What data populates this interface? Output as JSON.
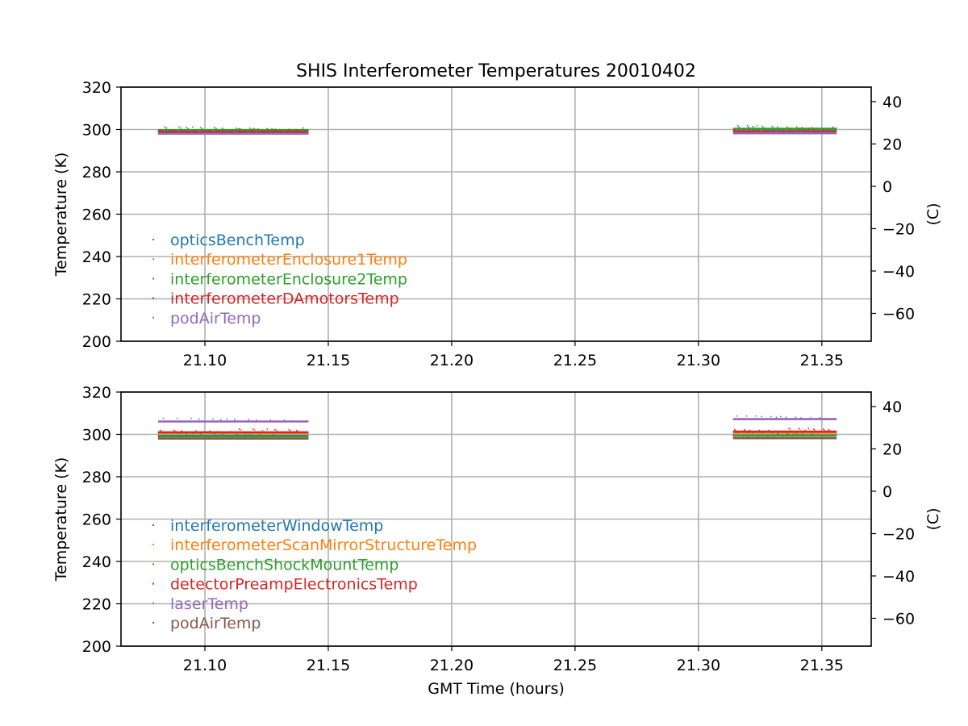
{
  "chart_data": [
    {
      "type": "line",
      "title": "SHIS Interferometer Temperatures 20010402",
      "xlabel": "",
      "ylabel": "Temperature (K)",
      "y2label": "(C)",
      "xlim": [
        21.066,
        21.37
      ],
      "ylim": [
        200,
        320
      ],
      "y2lim": [
        -73.15,
        46.85
      ],
      "xticks": [
        "21.10",
        "21.15",
        "21.20",
        "21.25",
        "21.30",
        "21.35"
      ],
      "yticks": [
        "200",
        "220",
        "240",
        "260",
        "280",
        "300",
        "320"
      ],
      "y2ticks": [
        "40",
        "20",
        "0",
        "−20",
        "−40",
        "−60"
      ],
      "grid": true,
      "legend_position": "lower-left",
      "marker": "point",
      "series": [
        {
          "name": "opticsBenchTemp",
          "color": "#1f77b4",
          "segments": [
            {
              "x": [
                21.081,
                21.142
              ],
              "y": 299.2
            },
            {
              "x": [
                21.314,
                21.356
              ],
              "y": 299.6
            }
          ]
        },
        {
          "name": "interferometerEnclosure1Temp",
          "color": "#ff7f0e",
          "segments": [
            {
              "x": [
                21.081,
                21.142
              ],
              "y": 298.7
            },
            {
              "x": [
                21.314,
                21.356
              ],
              "y": 299.1
            }
          ]
        },
        {
          "name": "interferometerEnclosure2Temp",
          "color": "#2ca02c",
          "segments": [
            {
              "x": [
                21.081,
                21.142
              ],
              "y": 299.7
            },
            {
              "x": [
                21.314,
                21.356
              ],
              "y": 300.3
            }
          ]
        },
        {
          "name": "interferometerDAmotorsTemp",
          "color": "#d62728",
          "segments": [
            {
              "x": [
                21.081,
                21.142
              ],
              "y": 298.9
            },
            {
              "x": [
                21.314,
                21.356
              ],
              "y": 299.0
            }
          ]
        },
        {
          "name": "podAirTemp",
          "color": "#9467bd",
          "segments": [
            {
              "x": [
                21.081,
                21.142
              ],
              "y": 298.0
            },
            {
              "x": [
                21.314,
                21.356
              ],
              "y": 298.2
            }
          ]
        }
      ]
    },
    {
      "type": "line",
      "title": "",
      "xlabel": "GMT Time (hours)",
      "ylabel": "Temperature (K)",
      "y2label": "(C)",
      "xlim": [
        21.066,
        21.37
      ],
      "ylim": [
        200,
        320
      ],
      "y2lim": [
        -73.15,
        46.85
      ],
      "xticks": [
        "21.10",
        "21.15",
        "21.20",
        "21.25",
        "21.30",
        "21.35"
      ],
      "yticks": [
        "200",
        "220",
        "240",
        "260",
        "280",
        "300",
        "320"
      ],
      "y2ticks": [
        "40",
        "20",
        "0",
        "−20",
        "−40",
        "−60"
      ],
      "grid": true,
      "legend_position": "lower-left",
      "marker": "point",
      "series": [
        {
          "name": "interferometerWindowTemp",
          "color": "#1f77b4",
          "segments": [
            {
              "x": [
                21.081,
                21.142
              ],
              "y": 299.3
            },
            {
              "x": [
                21.314,
                21.356
              ],
              "y": 299.5
            }
          ]
        },
        {
          "name": "interferometerScanMirrorStructureTemp",
          "color": "#ff7f0e",
          "segments": [
            {
              "x": [
                21.081,
                21.142
              ],
              "y": 300.6
            },
            {
              "x": [
                21.314,
                21.356
              ],
              "y": 300.8
            }
          ]
        },
        {
          "name": "opticsBenchShockMountTemp",
          "color": "#2ca02c",
          "segments": [
            {
              "x": [
                21.081,
                21.142
              ],
              "y": 299.0
            },
            {
              "x": [
                21.314,
                21.356
              ],
              "y": 299.4
            }
          ]
        },
        {
          "name": "detectorPreampElectronicsTemp",
          "color": "#d62728",
          "segments": [
            {
              "x": [
                21.081,
                21.142
              ],
              "y": 301.0
            },
            {
              "x": [
                21.314,
                21.356
              ],
              "y": 301.3
            }
          ]
        },
        {
          "name": "laserTemp",
          "color": "#9467bd",
          "segments": [
            {
              "x": [
                21.081,
                21.142
              ],
              "y": 306.1
            },
            {
              "x": [
                21.314,
                21.356
              ],
              "y": 307.2
            }
          ]
        },
        {
          "name": "podAirTemp",
          "color": "#8c564b",
          "segments": [
            {
              "x": [
                21.081,
                21.142
              ],
              "y": 298.0
            },
            {
              "x": [
                21.314,
                21.356
              ],
              "y": 298.2
            }
          ]
        }
      ]
    }
  ]
}
